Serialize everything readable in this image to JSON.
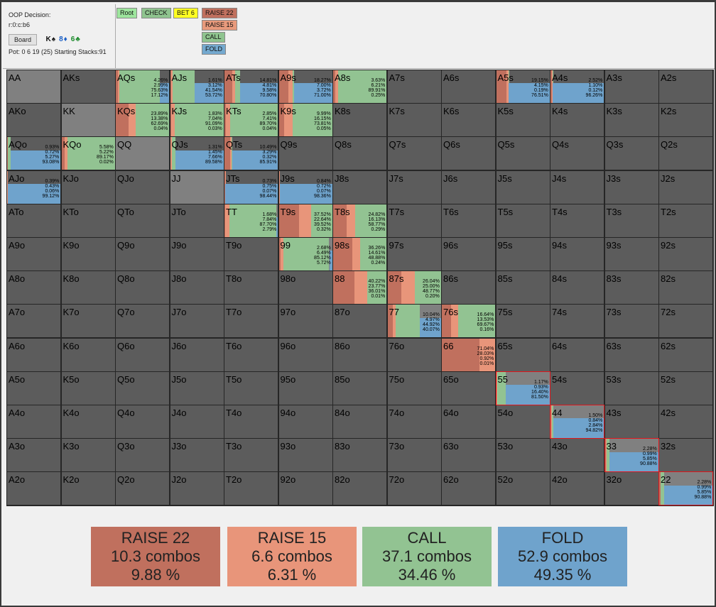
{
  "header": {
    "decision": "OOP Decision:",
    "line": "r:0:c:b6",
    "board_label": "Board",
    "board_cards": [
      {
        "text": "K♠",
        "cls": "card-k"
      },
      {
        "text": "8♦",
        "cls": "card-8"
      },
      {
        "text": "6♣",
        "cls": "card-6"
      }
    ],
    "pot_text": "Pot: 0 6 19 (25) Starting Stacks:91"
  },
  "nav_buttons": [
    {
      "label": "Root",
      "color": "#9de59d"
    },
    {
      "label": "CHECK",
      "color": "#8fc48f"
    },
    {
      "label": "BET 6",
      "color": "#ffff22"
    },
    {
      "label": "RAISE 22",
      "color": "#c0705e"
    },
    {
      "label": "RAISE 15",
      "color": "#e89a7c"
    },
    {
      "label": "CALL",
      "color": "#8fc48f"
    },
    {
      "label": "FOLD",
      "color": "#74a9cf"
    }
  ],
  "colors": {
    "raise22": "#c0705e",
    "raise15": "#e8957a",
    "call": "#92c392",
    "fold": "#6fa3cc",
    "pair_bg": "#808080",
    "empty_bg": "#5c5c5c",
    "highlight": "#e0161c"
  },
  "grid": {
    "ranks": [
      "A",
      "K",
      "Q",
      "J",
      "T",
      "9",
      "8",
      "7",
      "6",
      "5",
      "4",
      "3",
      "2"
    ],
    "cells": {
      "AQs": [
        4.26,
        2.99,
        75.63,
        17.12
      ],
      "AJs": [
        1.61,
        3.12,
        41.54,
        53.72
      ],
      "ATs": [
        14.81,
        4.81,
        9.58,
        70.8
      ],
      "A9s": [
        18.27,
        7.0,
        3.72,
        71.0
      ],
      "A8s": [
        3.63,
        6.21,
        89.91,
        0.25
      ],
      "A5s": [
        19.15,
        4.15,
        0.19,
        76.51
      ],
      "A4s": [
        2.52,
        1.1,
        0.12,
        96.26
      ],
      "KQs": [
        23.89,
        13.38,
        62.69,
        0.04
      ],
      "KJs": [
        1.83,
        7.04,
        91.09,
        0.03
      ],
      "KTs": [
        2.85,
        7.41,
        89.7,
        0.04
      ],
      "K9s": [
        9.99,
        16.15,
        73.81,
        0.05
      ],
      "AQo": [
        0.93,
        0.72,
        5.27,
        93.08
      ],
      "KQo": [
        5.58,
        5.22,
        89.17,
        0.02
      ],
      "QJs": [
        1.31,
        1.45,
        7.66,
        89.58
      ],
      "QTs": [
        10.49,
        3.29,
        0.32,
        85.91
      ],
      "AJo": [
        0.39,
        0.43,
        0.06,
        99.12
      ],
      "JTs": [
        0.73,
        0.75,
        0.07,
        98.44
      ],
      "J9s": [
        0.84,
        0.72,
        0.07,
        98.36
      ],
      "TT": [
        1.68,
        7.84,
        87.7,
        2.79
      ],
      "T9s": [
        37.52,
        22.64,
        39.52,
        0.32
      ],
      "T8s": [
        24.82,
        16.13,
        58.77,
        0.29
      ],
      "99": [
        2.68,
        6.49,
        85.12,
        5.72
      ],
      "98s": [
        36.26,
        14.61,
        48.88,
        0.24
      ],
      "88": [
        40.22,
        23.77,
        36.01,
        0.01
      ],
      "87s": [
        26.04,
        25.0,
        48.77,
        0.2
      ],
      "77": [
        10.04,
        4.97,
        44.92,
        40.07
      ],
      "76s": [
        16.64,
        13.53,
        69.67,
        0.16
      ],
      "66": [
        71.04,
        28.03,
        0.92,
        0.01
      ],
      "55": [
        1.17,
        0.93,
        16.4,
        81.5
      ],
      "44": [
        1.5,
        0.84,
        2.84,
        94.82
      ],
      "33": [
        2.28,
        0.99,
        5.85,
        90.88
      ],
      "22": [
        2.28,
        0.99,
        5.85,
        90.88
      ]
    },
    "highlighted": [
      "55",
      "44",
      "33",
      "22"
    ]
  },
  "summary": [
    {
      "action": "RAISE 22",
      "combos": "10.3 combos",
      "pct": "9.88 %",
      "color": "#c0705e"
    },
    {
      "action": "RAISE 15",
      "combos": "6.6 combos",
      "pct": "6.31 %",
      "color": "#e8957a"
    },
    {
      "action": "CALL",
      "combos": "37.1 combos",
      "pct": "34.46 %",
      "color": "#92c392"
    },
    {
      "action": "FOLD",
      "combos": "52.9 combos",
      "pct": "49.35 %",
      "color": "#6fa3cc"
    }
  ]
}
